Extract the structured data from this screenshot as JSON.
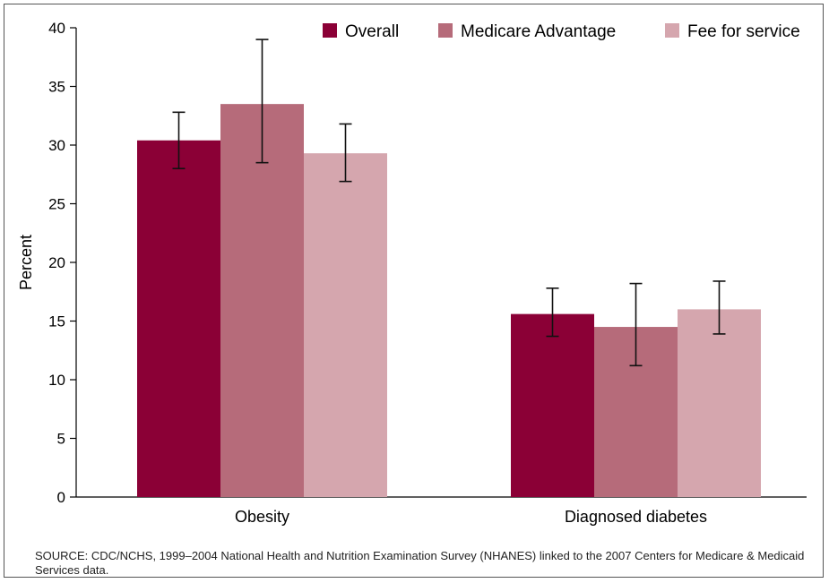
{
  "chart_data": {
    "type": "bar",
    "categories": [
      "Obesity",
      "Diagnosed diabetes"
    ],
    "series": [
      {
        "name": "Overall",
        "color": "#8b0036",
        "values": [
          30.4,
          15.6
        ],
        "error_low": [
          28.0,
          13.7
        ],
        "error_high": [
          32.8,
          17.8
        ]
      },
      {
        "name": "Medicare Advantage",
        "color": "#b66b7a",
        "values": [
          33.5,
          14.5
        ],
        "error_low": [
          28.5,
          11.2
        ],
        "error_high": [
          39.0,
          18.2
        ]
      },
      {
        "name": "Fee for service",
        "color": "#d5a6ae",
        "values": [
          29.3,
          16.0
        ],
        "error_low": [
          26.9,
          13.9
        ],
        "error_high": [
          31.8,
          18.4
        ]
      }
    ],
    "xlabel": "",
    "ylabel": "Percent",
    "ylim": [
      0,
      40
    ],
    "yticks": [
      "0",
      "5",
      "10",
      "15",
      "20",
      "25",
      "30",
      "35",
      "40"
    ],
    "grid": false,
    "legend": "top-right"
  },
  "source": "SOURCE: CDC/NCHS, 1999–2004 National Health and Nutrition Examination Survey (NHANES) linked to the 2007 Centers for Medicare & Medicaid Services data."
}
